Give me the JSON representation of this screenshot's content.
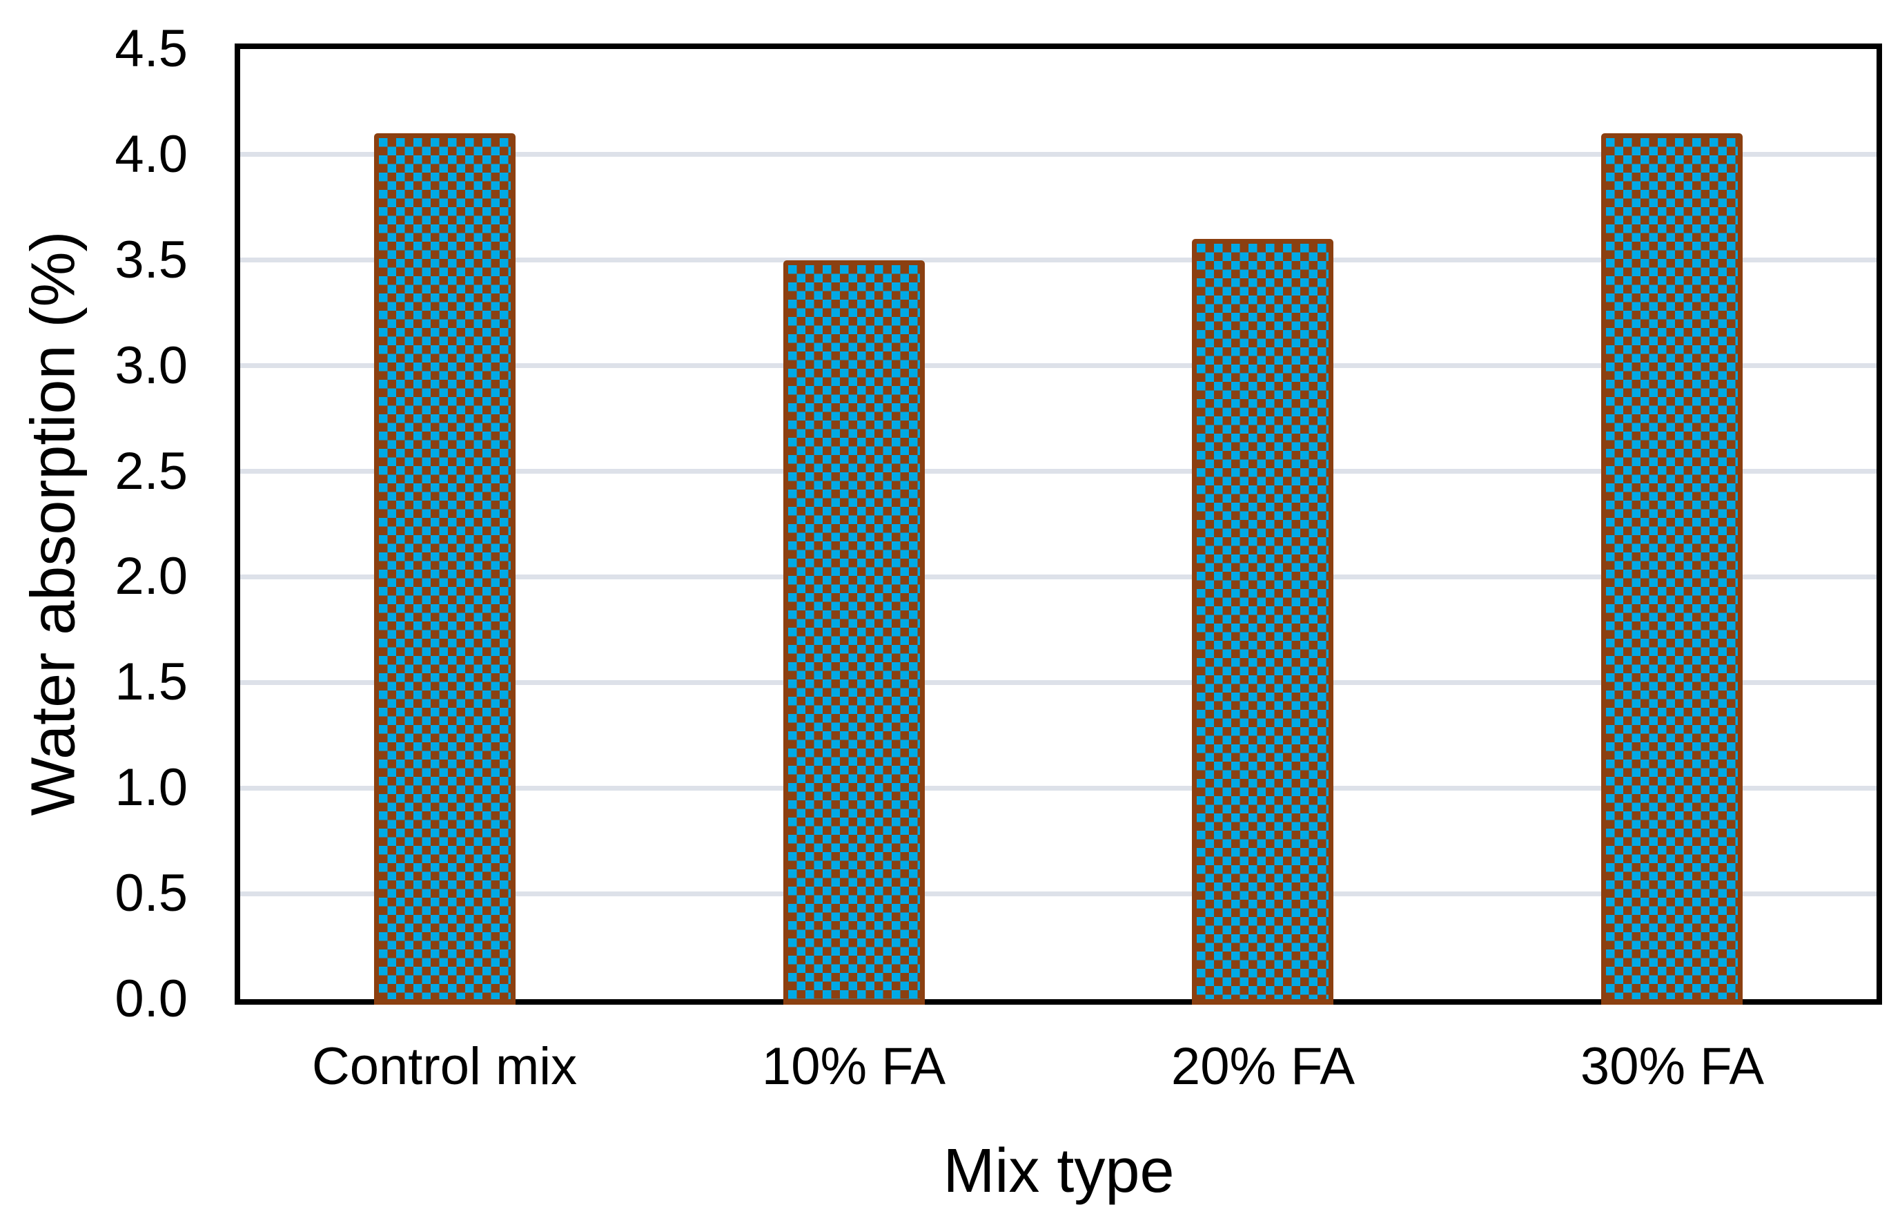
{
  "chart_data": {
    "type": "bar",
    "title": "",
    "categories": [
      "Control mix",
      "10% FA",
      "20% FA",
      "30% FA"
    ],
    "values": [
      4.1,
      3.5,
      3.6,
      4.1
    ],
    "xlabel": "Mix type",
    "ylabel": "Water absorption (%)",
    "ylim": [
      0,
      4.5
    ],
    "ytick_step": 0.5,
    "ytick_labels": [
      "4.5",
      "4.0",
      "3.5",
      "3.0",
      "2.5",
      "2.0",
      "1.5",
      "1.0",
      "0.5",
      "0.0"
    ],
    "grid": "horizontal",
    "legend": "none",
    "colors": {
      "bar_fill": "#00aae6",
      "bar_pattern": "#8b4011",
      "bar_pattern_style": "checkerboard",
      "gridline": "#dde1e9",
      "axis_frame": "#000000",
      "text": "#000000",
      "plot_background": "#ffffff"
    }
  }
}
